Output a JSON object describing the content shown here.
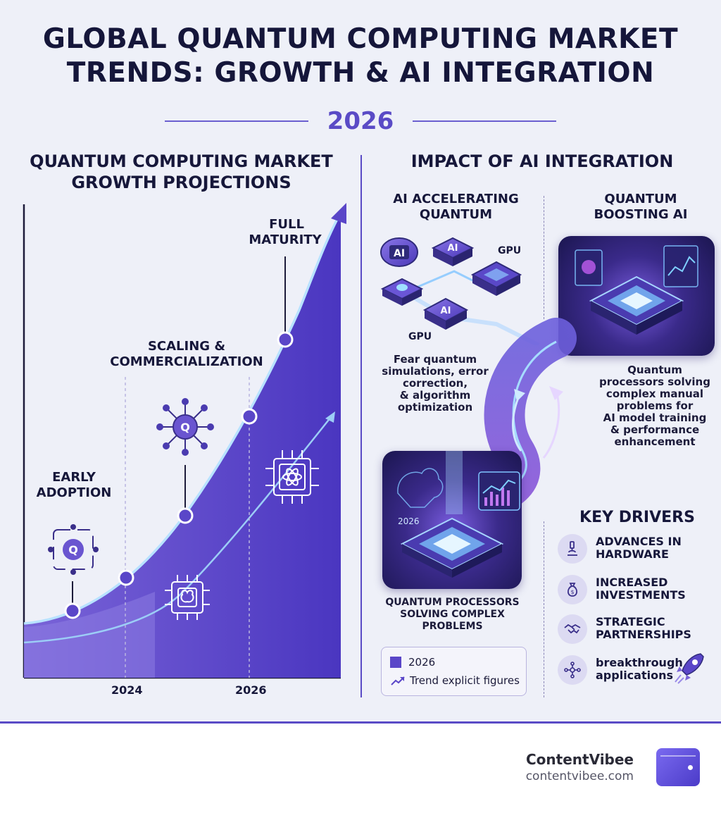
{
  "header": {
    "title_line1": "GLOBAL QUANTUM COMPUTING MARKET",
    "title_line2": "TRENDS: GROWTH & AI INTEGRATION",
    "year": "2026"
  },
  "left_section": {
    "title_line1": "QUANTUM COMPUTING MARKET",
    "title_line2": "GROWTH PROJECTIONS",
    "stages": {
      "early_line1": "EARLY",
      "early_line2": "ADOPTION",
      "scaling_line1": "SCALING &",
      "scaling_line2": "COMMERCIALIZATION",
      "full_line1": "FULL",
      "full_line2": "MATURITY"
    },
    "x_labels": [
      "2024",
      "2026"
    ]
  },
  "right_section": {
    "title": "IMPACT OF AI INTEGRATION",
    "ai_accelerating_line1": "AI ACCELERATING",
    "ai_accelerating_line2": "QUANTUM",
    "quantum_boosting_line1": "QUANTUM",
    "quantum_boosting_line2": "BOOSTING AI",
    "chip_label_ai": "AI",
    "gpu_label": "GPU",
    "left_desc": [
      "Fear quantum",
      "simulations, error",
      "correction,",
      "& algorithm",
      "optimization"
    ],
    "right_desc": [
      "Quantum",
      "processors solving",
      "complex manual",
      "problems for",
      "AI model training",
      "& performance",
      "enhancement"
    ],
    "bottom_caption": [
      "QUANTUM PROCESSORS",
      "SOLVING COMPLEX",
      "PROBLEMS"
    ],
    "chip_label_year": "2026",
    "legend": {
      "item1": "2026",
      "item2": "Trend explicit figures"
    },
    "key_drivers": {
      "title": "KEY DRIVERS",
      "items": [
        {
          "line1": "ADVANCES IN",
          "line2": "HARDWARE",
          "icon": "microscope-icon"
        },
        {
          "line1": "INCREASED",
          "line2": "INVESTMENTS",
          "icon": "money-bag-icon"
        },
        {
          "line1": "STRATEGIC",
          "line2": "PARTNERSHIPS",
          "icon": "handshake-icon"
        },
        {
          "line1": "breakthrough",
          "line2": "applications",
          "icon": "network-icon"
        }
      ]
    }
  },
  "footer": {
    "brand": "ContentVibee",
    "url": "contentvibee.com"
  },
  "colors": {
    "accent": "#5a4bc6",
    "background": "#eef0f8",
    "curve_fill": "#5a46c8",
    "curve_line": "#a8d8ff"
  }
}
